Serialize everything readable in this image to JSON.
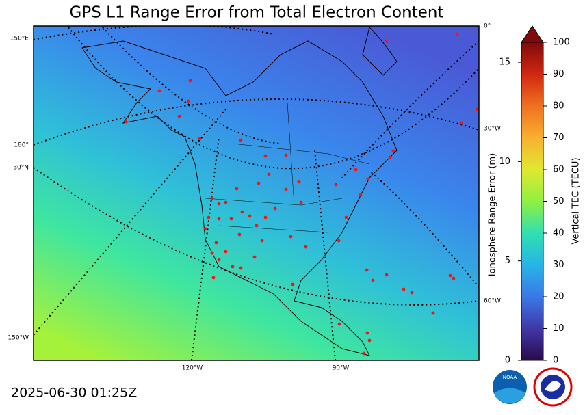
{
  "title": "GPS L1 Range Error from Total Electron Content",
  "timestamp": "2025-06-30 01:25Z",
  "graticule_labels": [
    "150°E",
    "180°",
    "30°N",
    "150°W",
    "0°",
    "30°W",
    "60°W",
    "120°W",
    "90°W"
  ],
  "colorbar": {
    "label": "Vertical TEC (TECU)",
    "lim": [
      0,
      100
    ],
    "ticks": [
      0,
      10,
      20,
      30,
      40,
      50,
      60,
      70,
      80,
      90,
      100
    ],
    "secondary_label": "Ionosphere Range Error (m)",
    "secondary_lim": [
      0,
      16
    ],
    "secondary_ticks": [
      0,
      5,
      10,
      15
    ]
  }
}
